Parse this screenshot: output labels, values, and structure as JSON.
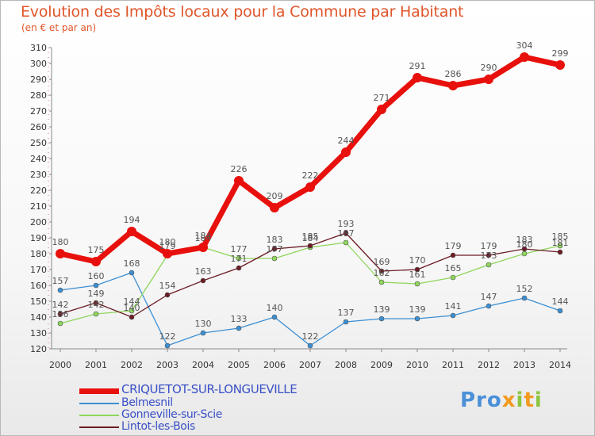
{
  "header": {
    "title": "Evolution des Impôts locaux pour la Commune par Habitant",
    "subtitle": "(en € et par an)"
  },
  "logo": {
    "text": "Proxiti"
  },
  "chart_data": {
    "type": "line",
    "title": "Evolution des Impôts locaux pour la Commune par Habitant",
    "subtitle": "(en € et par an)",
    "xlabel": "",
    "ylabel": "",
    "x": [
      "2000",
      "2001",
      "2002",
      "2003",
      "2004",
      "2005",
      "2006",
      "2007",
      "2008",
      "2009",
      "2010",
      "2011",
      "2012",
      "2013",
      "2014"
    ],
    "ylim": [
      120,
      310
    ],
    "yticks": [
      120,
      130,
      140,
      150,
      160,
      170,
      180,
      190,
      200,
      210,
      220,
      230,
      240,
      250,
      260,
      270,
      280,
      290,
      300,
      310
    ],
    "grid": false,
    "legend_position": "bottom-left",
    "series": [
      {
        "name": "CRIQUETOT-SUR-LONGUEVILLE",
        "color": "#e8100c",
        "values": [
          180,
          175,
          194,
          180,
          184,
          226,
          209,
          222,
          244,
          271,
          291,
          286,
          290,
          304,
          299
        ]
      },
      {
        "name": "Belmesnil",
        "color": "#3b8fd4",
        "values": [
          157,
          160,
          168,
          122,
          130,
          133,
          140,
          122,
          137,
          139,
          139,
          141,
          147,
          152,
          144
        ]
      },
      {
        "name": "Gonneville-sur-Scie",
        "color": "#8ed65b",
        "values": [
          136,
          142,
          144,
          179,
          184,
          177,
          177,
          184,
          187,
          162,
          161,
          165,
          173,
          180,
          185
        ]
      },
      {
        "name": "Lintot-les-Bois",
        "color": "#6b1c24",
        "values": [
          142,
          149,
          140,
          154,
          163,
          171,
          183,
          185,
          193,
          169,
          170,
          179,
          179,
          183,
          181
        ]
      }
    ]
  }
}
